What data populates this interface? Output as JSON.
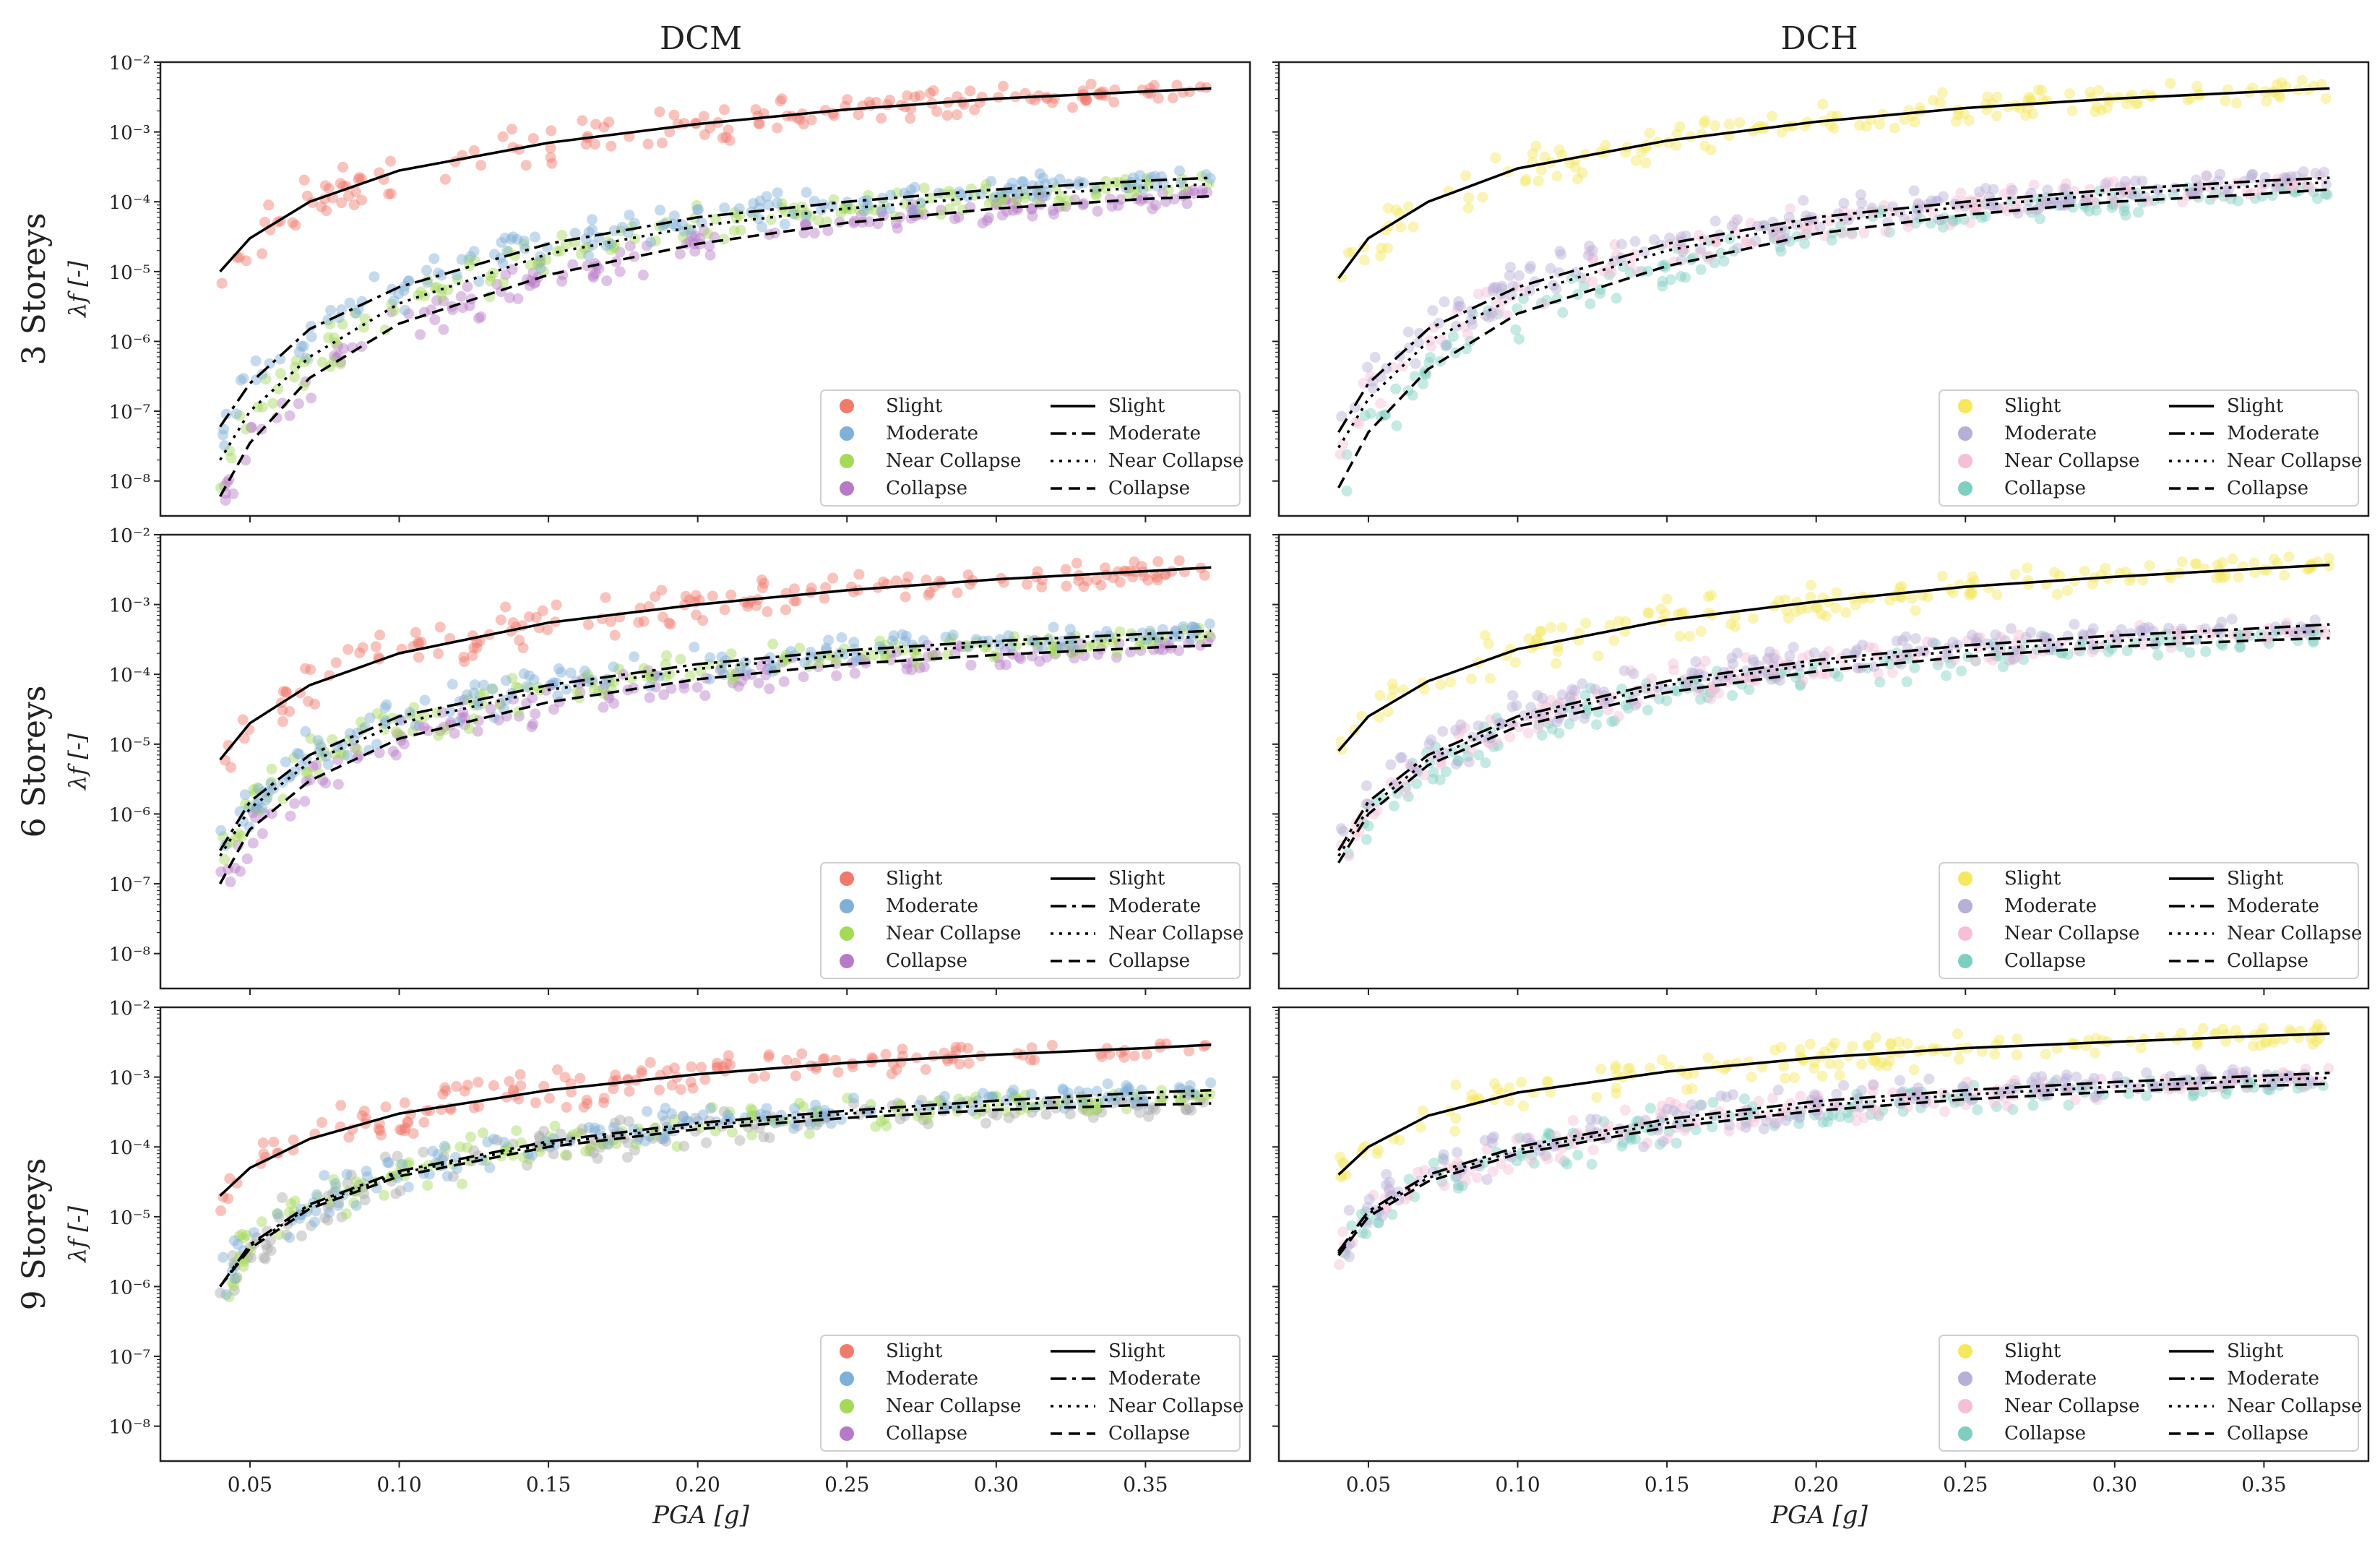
{
  "figure": {
    "column_titles": [
      "DCM",
      "DCH"
    ],
    "row_titles": [
      "3 Storeys",
      "6 Storeys",
      "9 Storeys"
    ],
    "xlabel": "PGA [g]",
    "ylabel": "λf [-]"
  },
  "legend": {
    "scatter_title": "",
    "labels": [
      "Slight",
      "Moderate",
      "Near Collapse",
      "Collapse"
    ],
    "line_labels": [
      "Slight",
      "Moderate",
      "Near Collapse",
      "Collapse"
    ]
  },
  "colors": {
    "DCM": [
      "#f07b6c",
      "#7fb0d8",
      "#a5d95a",
      "#b77ac8"
    ],
    "DCH": [
      "#f5e75e",
      "#b7afd6",
      "#f5bfd8",
      "#7fcfc0"
    ],
    "grey_points": "#a8a8a8",
    "fit_line": "#000000"
  },
  "chart_data": [
    {
      "type": "scatter",
      "title": "DCM",
      "row": "3 Storeys",
      "xlabel": "",
      "ylabel": "λf [-]",
      "xlim": [
        0.02,
        0.385
      ],
      "ylim_log10": [
        -8.5,
        -2
      ],
      "xticks": [
        0.05,
        0.1,
        0.15,
        0.2,
        0.25,
        0.3,
        0.35
      ],
      "yticks": [
        "10^-8",
        "10^-7",
        "10^-6",
        "10^-5",
        "10^-4",
        "10^-3",
        "10^-2"
      ],
      "series": [
        {
          "name": "Slight",
          "x": [
            0.04,
            0.05,
            0.07,
            0.1,
            0.15,
            0.2,
            0.25,
            0.3,
            0.35,
            0.372
          ],
          "y": [
            1e-05,
            3e-05,
            0.0001,
            0.00028,
            0.0007,
            0.0013,
            0.0021,
            0.003,
            0.0038,
            0.0042
          ]
        },
        {
          "name": "Moderate",
          "x": [
            0.04,
            0.05,
            0.07,
            0.1,
            0.15,
            0.2,
            0.25,
            0.3,
            0.35,
            0.372
          ],
          "y": [
            6e-08,
            2.5e-07,
            1.5e-06,
            6e-06,
            2.5e-05,
            6e-05,
            0.0001,
            0.00015,
            0.0002,
            0.00022
          ]
        },
        {
          "name": "Near Collapse",
          "x": [
            0.04,
            0.05,
            0.07,
            0.1,
            0.15,
            0.2,
            0.25,
            0.3,
            0.35,
            0.372
          ],
          "y": [
            2e-08,
            1e-07,
            6e-07,
            3.5e-06,
            1.8e-05,
            4.5e-05,
            8e-05,
            0.00012,
            0.00016,
            0.00018
          ]
        },
        {
          "name": "Collapse",
          "x": [
            0.04,
            0.05,
            0.07,
            0.1,
            0.15,
            0.2,
            0.25,
            0.3,
            0.35,
            0.372
          ],
          "y": [
            6e-09,
            3.5e-08,
            3e-07,
            1.8e-06,
            9e-06,
            2.5e-05,
            5e-05,
            8e-05,
            0.00011,
            0.00012
          ]
        }
      ]
    },
    {
      "type": "scatter",
      "title": "DCH",
      "row": "3 Storeys",
      "xlabel": "",
      "ylabel": "",
      "xlim": [
        0.02,
        0.385
      ],
      "ylim_log10": [
        -8.5,
        -2
      ],
      "xticks": [
        0.05,
        0.1,
        0.15,
        0.2,
        0.25,
        0.3,
        0.35
      ],
      "yticks": [],
      "series": [
        {
          "name": "Slight",
          "x": [
            0.04,
            0.05,
            0.07,
            0.1,
            0.15,
            0.2,
            0.25,
            0.3,
            0.35,
            0.372
          ],
          "y": [
            8e-06,
            3e-05,
            0.0001,
            0.0003,
            0.00075,
            0.0014,
            0.0022,
            0.003,
            0.0038,
            0.0042
          ]
        },
        {
          "name": "Moderate",
          "x": [
            0.04,
            0.05,
            0.07,
            0.1,
            0.15,
            0.2,
            0.25,
            0.3,
            0.35,
            0.372
          ],
          "y": [
            5e-08,
            2.5e-07,
            1.5e-06,
            6e-06,
            2.5e-05,
            6e-05,
            0.0001,
            0.00015,
            0.0002,
            0.00022
          ]
        },
        {
          "name": "Near Collapse",
          "x": [
            0.04,
            0.05,
            0.07,
            0.1,
            0.15,
            0.2,
            0.25,
            0.3,
            0.35,
            0.372
          ],
          "y": [
            3e-08,
            1.5e-07,
            1e-06,
            4.5e-06,
            2e-05,
            5e-05,
            8.5e-05,
            0.00013,
            0.00017,
            0.00019
          ]
        },
        {
          "name": "Collapse",
          "x": [
            0.04,
            0.05,
            0.07,
            0.1,
            0.15,
            0.2,
            0.25,
            0.3,
            0.35,
            0.372
          ],
          "y": [
            8e-09,
            5e-08,
            4e-07,
            2.5e-06,
            1.2e-05,
            3.5e-05,
            6.5e-05,
            0.0001,
            0.00013,
            0.00015
          ]
        }
      ]
    },
    {
      "type": "scatter",
      "title": "DCM",
      "row": "6 Storeys",
      "xlabel": "",
      "ylabel": "λf [-]",
      "xlim": [
        0.02,
        0.385
      ],
      "ylim_log10": [
        -8.5,
        -2
      ],
      "xticks": [
        0.05,
        0.1,
        0.15,
        0.2,
        0.25,
        0.3,
        0.35
      ],
      "yticks": [
        "10^-8",
        "10^-7",
        "10^-6",
        "10^-5",
        "10^-4",
        "10^-3",
        "10^-2"
      ],
      "series": [
        {
          "name": "Slight",
          "x": [
            0.04,
            0.05,
            0.07,
            0.1,
            0.15,
            0.2,
            0.25,
            0.3,
            0.35,
            0.372
          ],
          "y": [
            6e-06,
            2e-05,
            7e-05,
            0.0002,
            0.00055,
            0.001,
            0.0016,
            0.0023,
            0.003,
            0.0034
          ]
        },
        {
          "name": "Moderate",
          "x": [
            0.04,
            0.05,
            0.07,
            0.1,
            0.15,
            0.2,
            0.25,
            0.3,
            0.35,
            0.372
          ],
          "y": [
            3e-07,
            1.5e-06,
            7e-06,
            2.5e-05,
            7e-05,
            0.00014,
            0.00022,
            0.0003,
            0.00038,
            0.00042
          ]
        },
        {
          "name": "Near Collapse",
          "x": [
            0.04,
            0.05,
            0.07,
            0.1,
            0.15,
            0.2,
            0.25,
            0.3,
            0.35,
            0.372
          ],
          "y": [
            2.5e-07,
            1.2e-06,
            5.5e-06,
            2e-05,
            6e-05,
            0.00012,
            0.00019,
            0.00026,
            0.00032,
            0.00035
          ]
        },
        {
          "name": "Collapse",
          "x": [
            0.04,
            0.05,
            0.07,
            0.1,
            0.15,
            0.2,
            0.25,
            0.3,
            0.35,
            0.372
          ],
          "y": [
            1e-07,
            6e-07,
            3e-06,
            1.2e-05,
            4e-05,
            8.5e-05,
            0.00014,
            0.00019,
            0.00024,
            0.00026
          ]
        }
      ]
    },
    {
      "type": "scatter",
      "title": "DCH",
      "row": "6 Storeys",
      "xlabel": "",
      "ylabel": "",
      "xlim": [
        0.02,
        0.385
      ],
      "ylim_log10": [
        -8.5,
        -2
      ],
      "xticks": [
        0.05,
        0.1,
        0.15,
        0.2,
        0.25,
        0.3,
        0.35
      ],
      "yticks": [],
      "series": [
        {
          "name": "Slight",
          "x": [
            0.04,
            0.05,
            0.07,
            0.1,
            0.15,
            0.2,
            0.25,
            0.3,
            0.35,
            0.372
          ],
          "y": [
            8e-06,
            2.5e-05,
            8e-05,
            0.00023,
            0.0006,
            0.0011,
            0.0018,
            0.0025,
            0.0033,
            0.0037
          ]
        },
        {
          "name": "Moderate",
          "x": [
            0.04,
            0.05,
            0.07,
            0.1,
            0.15,
            0.2,
            0.25,
            0.3,
            0.35,
            0.372
          ],
          "y": [
            3e-07,
            1.5e-06,
            7e-06,
            2.5e-05,
            8e-05,
            0.00016,
            0.00026,
            0.00036,
            0.00046,
            0.00052
          ]
        },
        {
          "name": "Near Collapse",
          "x": [
            0.04,
            0.05,
            0.07,
            0.1,
            0.15,
            0.2,
            0.25,
            0.3,
            0.35,
            0.372
          ],
          "y": [
            2.5e-07,
            1.2e-06,
            6e-06,
            2.2e-05,
            7e-05,
            0.00014,
            0.00022,
            0.0003,
            0.00038,
            0.00042
          ]
        },
        {
          "name": "Collapse",
          "x": [
            0.04,
            0.05,
            0.07,
            0.1,
            0.15,
            0.2,
            0.25,
            0.3,
            0.35,
            0.372
          ],
          "y": [
            2e-07,
            1e-06,
            5e-06,
            1.8e-05,
            5.5e-05,
            0.00011,
            0.00018,
            0.00025,
            0.00031,
            0.00033
          ]
        }
      ]
    },
    {
      "type": "scatter",
      "title": "DCM",
      "row": "9 Storeys",
      "xlabel": "PGA [g]",
      "ylabel": "λf [-]",
      "xlim": [
        0.02,
        0.385
      ],
      "ylim_log10": [
        -8.5,
        -2
      ],
      "xticks": [
        0.05,
        0.1,
        0.15,
        0.2,
        0.25,
        0.3,
        0.35
      ],
      "yticks": [
        "10^-8",
        "10^-7",
        "10^-6",
        "10^-5",
        "10^-4",
        "10^-3",
        "10^-2"
      ],
      "series": [
        {
          "name": "Slight",
          "x": [
            0.04,
            0.05,
            0.07,
            0.1,
            0.15,
            0.2,
            0.25,
            0.3,
            0.35,
            0.372
          ],
          "y": [
            2e-05,
            5e-05,
            0.00013,
            0.0003,
            0.00065,
            0.0011,
            0.0016,
            0.0021,
            0.0026,
            0.0029
          ]
        },
        {
          "name": "Moderate",
          "x": [
            0.04,
            0.05,
            0.07,
            0.1,
            0.15,
            0.2,
            0.25,
            0.3,
            0.35,
            0.372
          ],
          "y": [
            1e-06,
            4e-06,
            1.5e-05,
            4.5e-05,
            0.00012,
            0.00022,
            0.00033,
            0.00046,
            0.0006,
            0.00065
          ]
        },
        {
          "name": "Near Collapse",
          "x": [
            0.04,
            0.05,
            0.07,
            0.1,
            0.15,
            0.2,
            0.25,
            0.3,
            0.35,
            0.372
          ],
          "y": [
            1e-06,
            3.8e-06,
            1.4e-05,
            4.2e-05,
            0.00011,
            0.0002,
            0.0003,
            0.0004,
            0.0005,
            0.00055
          ]
        },
        {
          "name": "Collapse",
          "x": [
            0.04,
            0.05,
            0.07,
            0.1,
            0.15,
            0.2,
            0.25,
            0.3,
            0.35,
            0.372
          ],
          "y": [
            1e-06,
            3.5e-06,
            1.3e-05,
            3.8e-05,
            0.0001,
            0.00018,
            0.00026,
            0.00034,
            0.0004,
            0.00042
          ]
        }
      ]
    },
    {
      "type": "scatter",
      "title": "DCH",
      "row": "9 Storeys",
      "xlabel": "PGA [g]",
      "ylabel": "",
      "xlim": [
        0.02,
        0.385
      ],
      "ylim_log10": [
        -8.5,
        -2
      ],
      "xticks": [
        0.05,
        0.1,
        0.15,
        0.2,
        0.25,
        0.3,
        0.35
      ],
      "yticks": [],
      "series": [
        {
          "name": "Slight",
          "x": [
            0.04,
            0.05,
            0.07,
            0.1,
            0.15,
            0.2,
            0.25,
            0.3,
            0.35,
            0.372
          ],
          "y": [
            4e-05,
            0.0001,
            0.00028,
            0.0006,
            0.0012,
            0.0019,
            0.0026,
            0.0032,
            0.0039,
            0.0042
          ]
        },
        {
          "name": "Moderate",
          "x": [
            0.04,
            0.05,
            0.07,
            0.1,
            0.15,
            0.2,
            0.25,
            0.3,
            0.35,
            0.372
          ],
          "y": [
            3.2e-06,
            1.2e-05,
            4e-05,
            0.0001,
            0.00025,
            0.00045,
            0.00065,
            0.00085,
            0.00105,
            0.00115
          ]
        },
        {
          "name": "Near Collapse",
          "x": [
            0.04,
            0.05,
            0.07,
            0.1,
            0.15,
            0.2,
            0.25,
            0.3,
            0.35,
            0.372
          ],
          "y": [
            3e-06,
            1.1e-05,
            3.6e-05,
            9e-05,
            0.00022,
            0.00039,
            0.00056,
            0.00073,
            0.0009,
            0.00098
          ]
        },
        {
          "name": "Collapse",
          "x": [
            0.04,
            0.05,
            0.07,
            0.1,
            0.15,
            0.2,
            0.25,
            0.3,
            0.35,
            0.372
          ],
          "y": [
            2.8e-06,
            1e-05,
            3.2e-05,
            8e-05,
            0.00019,
            0.00033,
            0.00048,
            0.00062,
            0.00075,
            0.0008
          ]
        }
      ]
    }
  ]
}
